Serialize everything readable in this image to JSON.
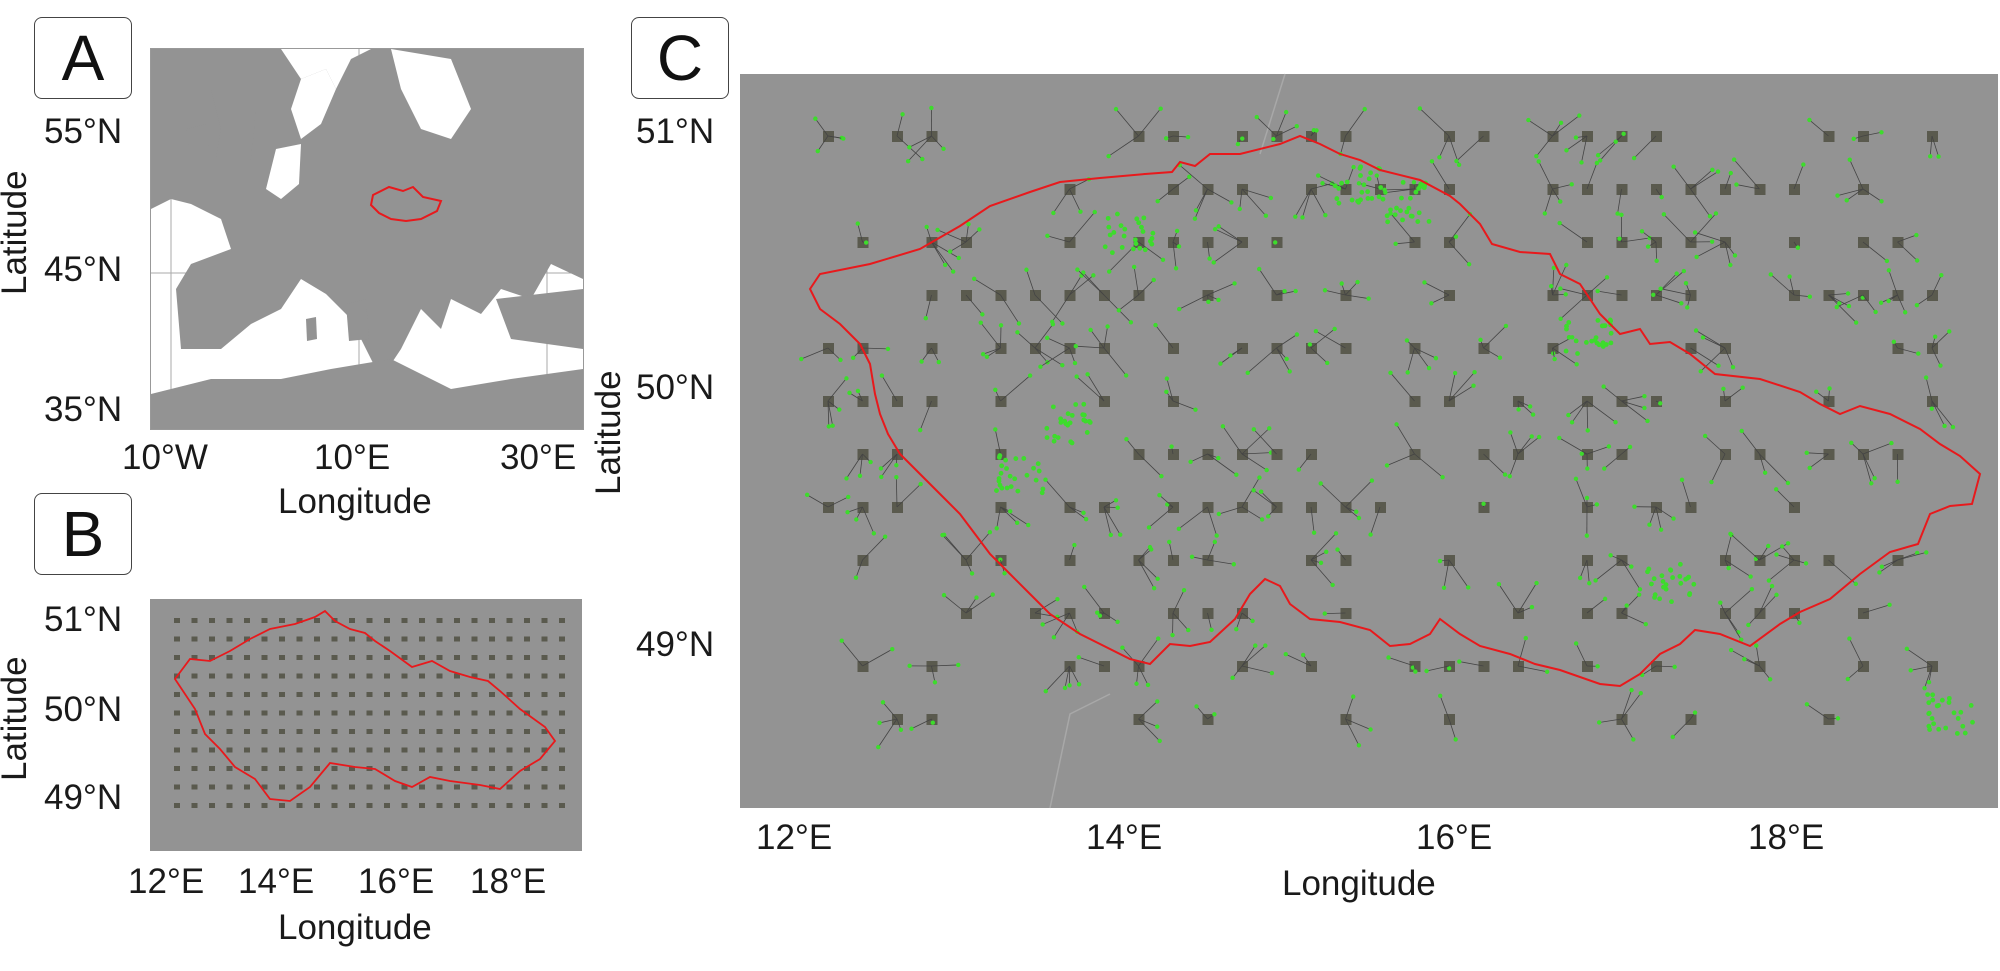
{
  "figure": {
    "panels": [
      {
        "id": "A",
        "label": "A",
        "y_ticks": [
          "55°N",
          "45°N",
          "35°N"
        ],
        "x_ticks": [
          "10°W",
          "10°E",
          "30°E"
        ],
        "xlabel": "Longitude",
        "ylabel": "Latitude",
        "colors": {
          "land": "#939393",
          "sea": "#ffffff",
          "region_outline": "#e8191c"
        }
      },
      {
        "id": "B",
        "label": "B",
        "y_ticks": [
          "51°N",
          "50°N",
          "49°N"
        ],
        "x_ticks": [
          "12°E",
          "14°E",
          "16°E",
          "18°E"
        ],
        "xlabel": "Longitude",
        "ylabel": "Latitude",
        "colors": {
          "background": "#939393",
          "grid_points": "#5a5a4e",
          "border": "#e8191c"
        }
      },
      {
        "id": "C",
        "label": "C",
        "y_ticks": [
          "51°N",
          "50°N",
          "49°N"
        ],
        "x_ticks": [
          "12°E",
          "14°E",
          "16°E",
          "18°E"
        ],
        "xlabel": "Longitude",
        "ylabel": "Latitude",
        "colors": {
          "background": "#939393",
          "grid_points": "#5a5a4e",
          "stations": "#3ddc2c",
          "links": "#444444",
          "border": "#e8191c"
        }
      }
    ]
  }
}
